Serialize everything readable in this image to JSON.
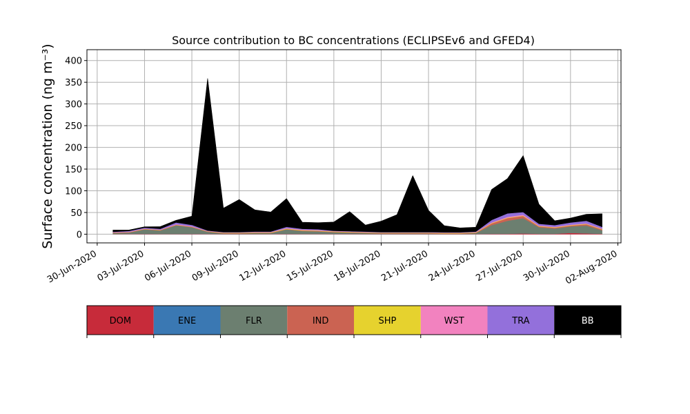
{
  "chart_data": {
    "type": "area",
    "title": "Source contribution to BC concentrations (ECLIPSEv6 and GFED4)",
    "ylabel": "Surface concentration (ng m⁻³)",
    "xlabel": "",
    "ylim": [
      -20,
      425
    ],
    "xlim": [
      "2020-06-30",
      "2020-08-02"
    ],
    "grid": true,
    "stacked": true,
    "yticks": [
      0,
      50,
      100,
      150,
      200,
      250,
      300,
      350,
      400
    ],
    "xticks": [
      "30-Jun-2020",
      "03-Jul-2020",
      "06-Jul-2020",
      "09-Jul-2020",
      "12-Jul-2020",
      "15-Jul-2020",
      "18-Jul-2020",
      "21-Jul-2020",
      "24-Jul-2020",
      "27-Jul-2020",
      "30-Jul-2020",
      "02-Aug-2020"
    ],
    "x": [
      "2020-07-01",
      "2020-07-02",
      "2020-07-03",
      "2020-07-04",
      "2020-07-05",
      "2020-07-06",
      "2020-07-07",
      "2020-07-08",
      "2020-07-09",
      "2020-07-10",
      "2020-07-11",
      "2020-07-12",
      "2020-07-13",
      "2020-07-14",
      "2020-07-15",
      "2020-07-16",
      "2020-07-17",
      "2020-07-18",
      "2020-07-19",
      "2020-07-20",
      "2020-07-21",
      "2020-07-22",
      "2020-07-23",
      "2020-07-24",
      "2020-07-25",
      "2020-07-26",
      "2020-07-27",
      "2020-07-28",
      "2020-07-29",
      "2020-07-30",
      "2020-07-31",
      "2020-08-01"
    ],
    "legend": {
      "placement": "bottom-colorbar",
      "items": [
        {
          "label": "DOM",
          "color": "#c72b3a"
        },
        {
          "label": "ENE",
          "color": "#3a78b3"
        },
        {
          "label": "FLR",
          "color": "#6c7f70"
        },
        {
          "label": "IND",
          "color": "#cb6352"
        },
        {
          "label": "SHP",
          "color": "#e6d22e"
        },
        {
          "label": "WST",
          "color": "#f282bf"
        },
        {
          "label": "TRA",
          "color": "#9370db"
        },
        {
          "label": "BB",
          "color": "#000000"
        }
      ]
    },
    "series": [
      {
        "name": "DOM",
        "color": "#c72b3a",
        "values": [
          0.5,
          0.5,
          1,
          0.5,
          0.5,
          1,
          0.5,
          0.5,
          0.5,
          0.5,
          0.5,
          1,
          0.5,
          0.5,
          0.5,
          0.5,
          0.5,
          0.5,
          0.5,
          0.5,
          0.5,
          0.5,
          0.5,
          0.5,
          1,
          1,
          2,
          1,
          1,
          3,
          2,
          1
        ]
      },
      {
        "name": "ENE",
        "color": "#3a78b3",
        "values": [
          0,
          0,
          0,
          0,
          0,
          0,
          0,
          0,
          0,
          0,
          0,
          0,
          0,
          0,
          0,
          0,
          0,
          0,
          0,
          0,
          0,
          0,
          0,
          0,
          0,
          0,
          0,
          0,
          0,
          0,
          0,
          0
        ]
      },
      {
        "name": "FLR",
        "color": "#6c7f70",
        "values": [
          2,
          3,
          10,
          8,
          20,
          15,
          5,
          1,
          1,
          2,
          2,
          10,
          7,
          6,
          4,
          3,
          2,
          1,
          1,
          1,
          1,
          0.5,
          0.5,
          2,
          20,
          30,
          35,
          15,
          12,
          15,
          18,
          8
        ]
      },
      {
        "name": "IND",
        "color": "#cb6352",
        "values": [
          1,
          1,
          1,
          1,
          1,
          1,
          1,
          1,
          1,
          1,
          1,
          1,
          1,
          1,
          1,
          1,
          1,
          1,
          1,
          1,
          1,
          1,
          1,
          1,
          4,
          6,
          5,
          2,
          2,
          2,
          3,
          2
        ]
      },
      {
        "name": "SHP",
        "color": "#e6d22e",
        "values": [
          0.5,
          0.5,
          0.5,
          0.5,
          0.5,
          0.5,
          0.5,
          1,
          1,
          1,
          1,
          1,
          1,
          1,
          1,
          1,
          1,
          1,
          1,
          1,
          1,
          1,
          1,
          1,
          1,
          1,
          1,
          1,
          1,
          1,
          1,
          1
        ]
      },
      {
        "name": "WST",
        "color": "#f282bf",
        "values": [
          0.5,
          0.5,
          0.5,
          0.5,
          1,
          1,
          0.5,
          0.5,
          0.5,
          0.5,
          0.5,
          1,
          1,
          1,
          0.5,
          0.5,
          0.5,
          0.5,
          0.5,
          0.5,
          0.5,
          0.5,
          0.5,
          0.5,
          1,
          2,
          2,
          1,
          1,
          1,
          1,
          1
        ]
      },
      {
        "name": "TRA",
        "color": "#9370db",
        "values": [
          1,
          2,
          2,
          2,
          4,
          3,
          1,
          1,
          1,
          1,
          1,
          3,
          2,
          2,
          1,
          1,
          1,
          1,
          1,
          1,
          1,
          1,
          1,
          1,
          6,
          8,
          6,
          4,
          4,
          5,
          6,
          4
        ]
      },
      {
        "name": "BB",
        "color": "#000000",
        "values": [
          4,
          2,
          2,
          5,
          5,
          20,
          350,
          55,
          75,
          50,
          45,
          65,
          15,
          15,
          20,
          45,
          15,
          25,
          40,
          130,
          50,
          15,
          10,
          10,
          70,
          80,
          130,
          45,
          10,
          10,
          15,
          30
        ]
      }
    ]
  }
}
